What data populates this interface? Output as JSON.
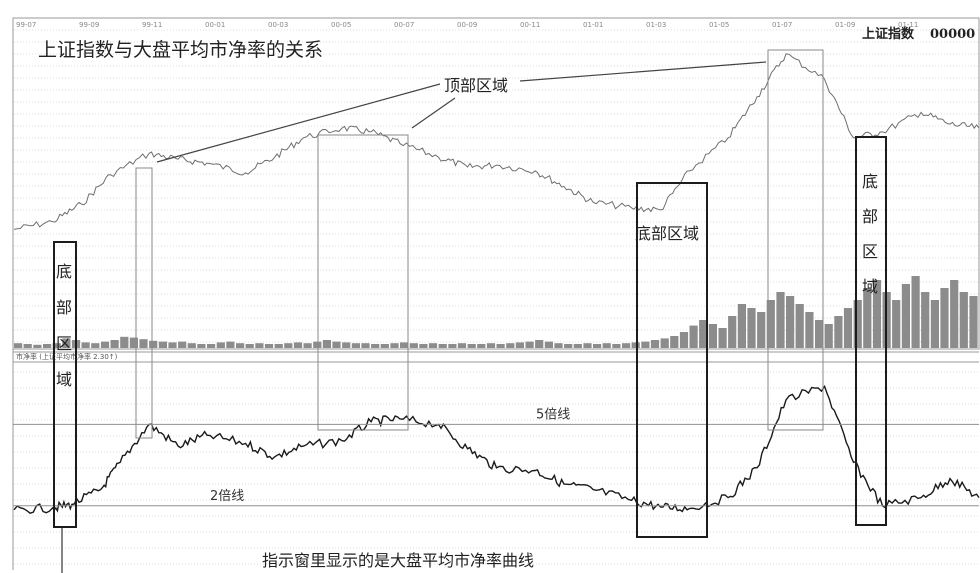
{
  "title": "上证指数与大盘平均市净率的关系",
  "index_label": "上证指数",
  "index_code": "00000",
  "indicator_header": "市净率 (上证平均市净率 2.30↑)",
  "date_ticks": [
    "99-07",
    "99-09",
    "99-11",
    "00-01",
    "00-03",
    "00-05",
    "00-07",
    "00-09",
    "00-11",
    "01-01",
    "01-03",
    "01-05",
    "01-07",
    "01-09",
    "01-11"
  ],
  "callout_top": "顶部区域",
  "region_bottom_horizontal": "底部区域",
  "region_bottom_vertical_left": [
    "底",
    "部",
    "区",
    "域"
  ],
  "region_bottom_vertical_right": [
    "底",
    "部",
    "区",
    "域"
  ],
  "line_5x": "5倍线",
  "line_2x": "2倍线",
  "caption": "指示窗里显示的是大盘平均市净率曲线",
  "colors": {
    "background": "#ffffff",
    "price": "#6f6f6f",
    "pb": "#1a1a1a",
    "volume": "#8c8c8c",
    "box": "#1c1c1c"
  },
  "chart_data": {
    "type": "line",
    "series": [
      {
        "name": "上证指数",
        "x": [
          0,
          4,
          7,
          10,
          14,
          17,
          20,
          24,
          27,
          30,
          34,
          37,
          40,
          44,
          47,
          50,
          54,
          57,
          60,
          64,
          67,
          70,
          74,
          77,
          80,
          84,
          87,
          90,
          94,
          97,
          100
        ],
        "y": [
          0.08,
          0.12,
          0.21,
          0.36,
          0.47,
          0.44,
          0.42,
          0.37,
          0.45,
          0.55,
          0.6,
          0.58,
          0.52,
          0.45,
          0.4,
          0.41,
          0.38,
          0.3,
          0.22,
          0.19,
          0.18,
          0.38,
          0.55,
          0.76,
          0.98,
          0.85,
          0.55,
          0.58,
          0.68,
          0.62,
          0.6
        ]
      },
      {
        "name": "大盘平均市净率",
        "x": [
          0,
          4,
          6,
          9,
          11,
          14,
          17,
          20,
          24,
          27,
          30,
          34,
          37,
          40,
          44,
          47,
          50,
          54,
          57,
          60,
          64,
          67,
          70,
          74,
          77,
          80,
          84,
          87,
          90,
          94,
          97,
          100
        ],
        "y": [
          1.85,
          1.92,
          2.05,
          2.6,
          3.6,
          5.0,
          4.2,
          4.6,
          4.3,
          3.8,
          4.2,
          4.4,
          5.1,
          5.2,
          5.0,
          4.1,
          3.4,
          3.3,
          2.8,
          2.6,
          2.2,
          1.95,
          1.9,
          2.3,
          3.4,
          5.9,
          6.4,
          3.6,
          2.0,
          2.3,
          3.0,
          2.3
        ]
      }
    ],
    "reference_lines": [
      {
        "label": "5倍线",
        "value": 5
      },
      {
        "label": "2倍线",
        "value": 2
      }
    ],
    "volume": [
      0.06,
      0.05,
      0.04,
      0.05,
      0.06,
      0.12,
      0.1,
      0.07,
      0.06,
      0.08,
      0.1,
      0.14,
      0.13,
      0.11,
      0.09,
      0.08,
      0.07,
      0.08,
      0.06,
      0.05,
      0.05,
      0.07,
      0.08,
      0.06,
      0.05,
      0.06,
      0.05,
      0.05,
      0.06,
      0.07,
      0.06,
      0.08,
      0.1,
      0.08,
      0.07,
      0.06,
      0.06,
      0.05,
      0.05,
      0.06,
      0.07,
      0.06,
      0.05,
      0.06,
      0.05,
      0.05,
      0.06,
      0.05,
      0.05,
      0.06,
      0.05,
      0.06,
      0.07,
      0.08,
      0.1,
      0.08,
      0.06,
      0.05,
      0.05,
      0.06,
      0.05,
      0.06,
      0.05,
      0.06,
      0.07,
      0.08,
      0.1,
      0.12,
      0.15,
      0.2,
      0.28,
      0.35,
      0.3,
      0.25,
      0.4,
      0.55,
      0.5,
      0.45,
      0.6,
      0.7,
      0.65,
      0.55,
      0.45,
      0.35,
      0.3,
      0.4,
      0.5,
      0.6,
      0.75,
      0.85,
      0.7,
      0.6,
      0.8,
      0.9,
      0.7,
      0.6,
      0.75,
      0.85,
      0.7,
      0.65
    ]
  }
}
